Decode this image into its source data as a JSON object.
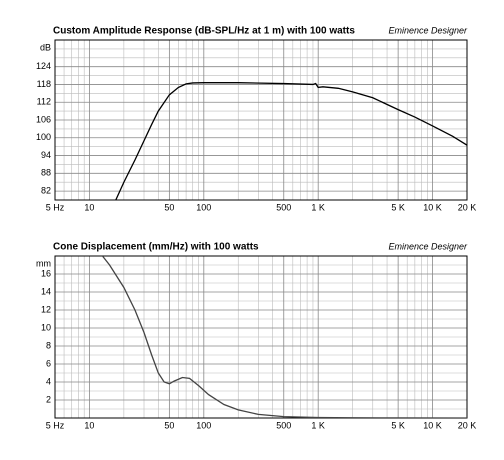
{
  "chart_data": [
    {
      "type": "line",
      "title": "Custom Amplitude Response (dB-SPL/Hz at 1 m) with 100 watts",
      "annotation": "Eminence Designer",
      "y_label": "dB",
      "log_x": true,
      "grid": true,
      "color": "#000000",
      "x": [
        17,
        20,
        25,
        30,
        35,
        40,
        50,
        60,
        70,
        80,
        100,
        200,
        500,
        900,
        950,
        1000,
        1100,
        1500,
        2000,
        3000,
        5000,
        7000,
        10000,
        15000,
        20000
      ],
      "values": [
        79,
        85,
        92.5,
        99,
        104.5,
        109,
        114.5,
        117,
        118.2,
        118.5,
        118.6,
        118.6,
        118.3,
        118,
        118.3,
        117,
        117.2,
        116.7,
        115.5,
        113.5,
        109.5,
        107,
        104,
        100.5,
        97.5
      ],
      "xlim": [
        5,
        20000
      ],
      "ylim": [
        79,
        133
      ],
      "xticks": [
        {
          "value": 5,
          "label": "5 Hz"
        },
        10,
        50,
        100,
        500,
        {
          "value": 1000,
          "label": "1 K"
        },
        {
          "value": 5000,
          "label": "5 K"
        },
        {
          "value": 10000,
          "label": "10 K"
        },
        {
          "value": 20000,
          "label": "20 K"
        }
      ],
      "yticks": [
        82,
        88,
        94,
        100,
        106,
        112,
        118,
        124
      ],
      "xgrid": [
        6,
        7,
        8,
        9,
        20,
        30,
        40,
        60,
        70,
        80,
        90,
        200,
        300,
        400,
        600,
        700,
        800,
        900,
        2000,
        3000,
        4000,
        6000,
        7000,
        8000,
        9000
      ],
      "ygrid": [
        79,
        85,
        91,
        97,
        103,
        109,
        115,
        121,
        127,
        130,
        133
      ]
    },
    {
      "type": "line",
      "title": "Cone Displacement (mm/Hz) with 100 watts",
      "annotation": "Eminence Designer",
      "y_label": "mm",
      "log_x": true,
      "grid": true,
      "color": "#444444",
      "x": [
        13,
        15,
        20,
        25,
        30,
        35,
        40,
        45,
        50,
        55,
        65,
        75,
        90,
        110,
        150,
        200,
        300,
        500,
        1000,
        2000,
        5000,
        20000
      ],
      "values": [
        18,
        17,
        14.5,
        12,
        9.5,
        7,
        5,
        4,
        3.8,
        4.1,
        4.5,
        4.4,
        3.6,
        2.6,
        1.5,
        0.9,
        0.4,
        0.15,
        0.05,
        0.02,
        0.01,
        0
      ],
      "xlim": [
        5,
        20000
      ],
      "ylim": [
        0,
        18
      ],
      "xticks": [
        {
          "value": 5,
          "label": "5 Hz"
        },
        10,
        50,
        100,
        500,
        {
          "value": 1000,
          "label": "1 K"
        },
        {
          "value": 5000,
          "label": "5 K"
        },
        {
          "value": 10000,
          "label": "10 K"
        },
        {
          "value": 20000,
          "label": "20 K"
        }
      ],
      "yticks": [
        2,
        4,
        6,
        8,
        10,
        12,
        14,
        16
      ],
      "xgrid": [
        6,
        7,
        8,
        9,
        20,
        30,
        40,
        60,
        70,
        80,
        90,
        200,
        300,
        400,
        600,
        700,
        800,
        900,
        2000,
        3000,
        4000,
        6000,
        7000,
        8000,
        9000
      ],
      "ygrid": [
        1,
        3,
        5,
        7,
        9,
        11,
        13,
        15,
        17,
        18
      ]
    }
  ]
}
